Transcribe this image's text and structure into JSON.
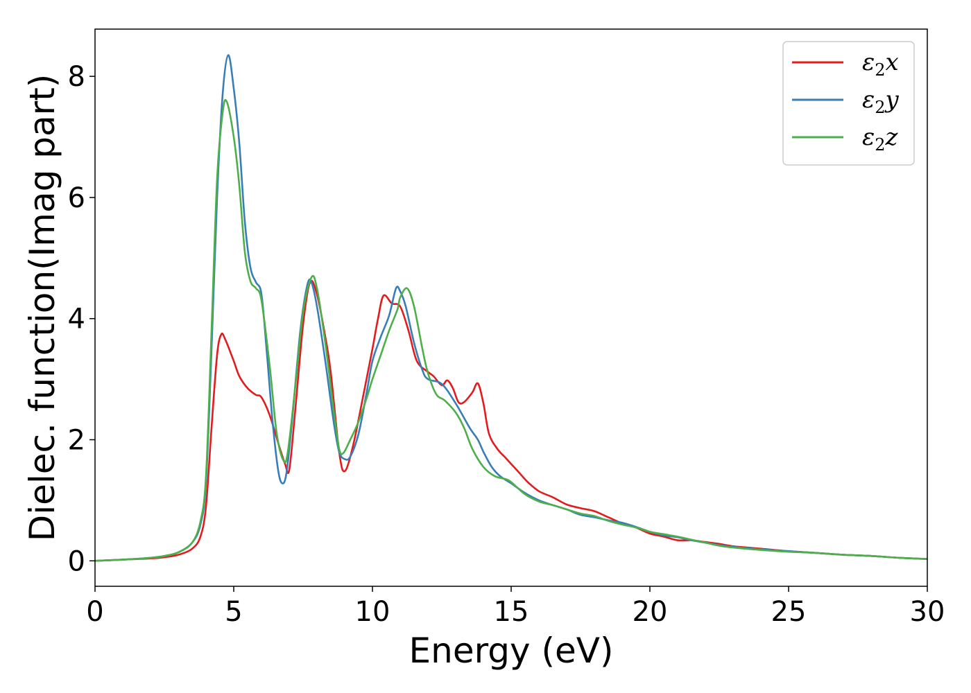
{
  "chart_data": {
    "type": "line",
    "xlabel": "Energy (eV)",
    "ylabel": "Dielec. function(Imag part)",
    "xlim": [
      0,
      30
    ],
    "ylim": [
      -0.42,
      8.78
    ],
    "x_ticks": [
      0,
      5,
      10,
      15,
      20,
      25,
      30
    ],
    "y_ticks": [
      0,
      2,
      4,
      6,
      8
    ],
    "grid": false,
    "legend_position": "top-right",
    "series": [
      {
        "name": "ε2x",
        "legend": {
          "base": "ε",
          "sub": "2",
          "suffix": "x"
        },
        "color": "#e41a1c",
        "points": [
          [
            0,
            0
          ],
          [
            1,
            0.02
          ],
          [
            2,
            0.04
          ],
          [
            2.5,
            0.06
          ],
          [
            3,
            0.1
          ],
          [
            3.5,
            0.2
          ],
          [
            3.8,
            0.4
          ],
          [
            4,
            0.9
          ],
          [
            4.2,
            2.2
          ],
          [
            4.4,
            3.4
          ],
          [
            4.55,
            3.74
          ],
          [
            4.7,
            3.65
          ],
          [
            5,
            3.3
          ],
          [
            5.2,
            3.05
          ],
          [
            5.5,
            2.85
          ],
          [
            5.8,
            2.74
          ],
          [
            6,
            2.7
          ],
          [
            6.3,
            2.4
          ],
          [
            6.6,
            1.95
          ],
          [
            6.85,
            1.6
          ],
          [
            7,
            1.5
          ],
          [
            7.2,
            2.4
          ],
          [
            7.5,
            3.9
          ],
          [
            7.75,
            4.6
          ],
          [
            8,
            4.4
          ],
          [
            8.3,
            3.7
          ],
          [
            8.5,
            3.1
          ],
          [
            8.8,
            1.8
          ],
          [
            9,
            1.48
          ],
          [
            9.3,
            1.9
          ],
          [
            9.7,
            2.8
          ],
          [
            10,
            3.5
          ],
          [
            10.2,
            4.0
          ],
          [
            10.4,
            4.38
          ],
          [
            10.7,
            4.25
          ],
          [
            11,
            4.2
          ],
          [
            11.3,
            3.8
          ],
          [
            11.6,
            3.3
          ],
          [
            12,
            3.12
          ],
          [
            12.2,
            3.05
          ],
          [
            12.5,
            2.9
          ],
          [
            12.7,
            2.98
          ],
          [
            12.9,
            2.85
          ],
          [
            13.1,
            2.62
          ],
          [
            13.3,
            2.62
          ],
          [
            13.6,
            2.78
          ],
          [
            13.8,
            2.93
          ],
          [
            14,
            2.6
          ],
          [
            14.2,
            2.1
          ],
          [
            14.5,
            1.85
          ],
          [
            14.8,
            1.7
          ],
          [
            15,
            1.6
          ],
          [
            15.3,
            1.45
          ],
          [
            15.6,
            1.3
          ],
          [
            16,
            1.15
          ],
          [
            16.5,
            1.05
          ],
          [
            17,
            0.93
          ],
          [
            17.5,
            0.87
          ],
          [
            18,
            0.82
          ],
          [
            18.5,
            0.72
          ],
          [
            19,
            0.62
          ],
          [
            19.5,
            0.55
          ],
          [
            20,
            0.45
          ],
          [
            20.5,
            0.4
          ],
          [
            21,
            0.34
          ],
          [
            21.5,
            0.34
          ],
          [
            22,
            0.31
          ],
          [
            22.5,
            0.28
          ],
          [
            23,
            0.24
          ],
          [
            23.5,
            0.22
          ],
          [
            24,
            0.2
          ],
          [
            25,
            0.16
          ],
          [
            26,
            0.13
          ],
          [
            27,
            0.1
          ],
          [
            28,
            0.08
          ],
          [
            29,
            0.05
          ],
          [
            30,
            0.03
          ]
        ]
      },
      {
        "name": "ε2y",
        "legend": {
          "base": "ε",
          "sub": "2",
          "suffix": "y"
        },
        "color": "#377eb8",
        "points": [
          [
            0,
            0
          ],
          [
            1,
            0.02
          ],
          [
            2,
            0.05
          ],
          [
            2.5,
            0.08
          ],
          [
            3,
            0.14
          ],
          [
            3.5,
            0.3
          ],
          [
            3.8,
            0.6
          ],
          [
            4,
            1.3
          ],
          [
            4.2,
            3.5
          ],
          [
            4.4,
            6.0
          ],
          [
            4.6,
            7.7
          ],
          [
            4.8,
            8.35
          ],
          [
            5,
            7.8
          ],
          [
            5.2,
            6.9
          ],
          [
            5.4,
            5.6
          ],
          [
            5.6,
            4.85
          ],
          [
            5.8,
            4.6
          ],
          [
            6,
            4.4
          ],
          [
            6.2,
            3.4
          ],
          [
            6.4,
            2.3
          ],
          [
            6.6,
            1.5
          ],
          [
            6.75,
            1.28
          ],
          [
            6.9,
            1.45
          ],
          [
            7.1,
            2.3
          ],
          [
            7.4,
            3.8
          ],
          [
            7.65,
            4.55
          ],
          [
            7.8,
            4.6
          ],
          [
            8,
            4.2
          ],
          [
            8.3,
            3.3
          ],
          [
            8.6,
            2.3
          ],
          [
            8.8,
            1.8
          ],
          [
            9,
            1.68
          ],
          [
            9.2,
            1.72
          ],
          [
            9.5,
            2.1
          ],
          [
            9.8,
            2.8
          ],
          [
            10,
            3.3
          ],
          [
            10.3,
            3.7
          ],
          [
            10.6,
            4.05
          ],
          [
            10.85,
            4.5
          ],
          [
            11,
            4.45
          ],
          [
            11.2,
            4.2
          ],
          [
            11.5,
            3.6
          ],
          [
            11.8,
            3.15
          ],
          [
            12,
            3.0
          ],
          [
            12.5,
            2.92
          ],
          [
            13,
            2.6
          ],
          [
            13.5,
            2.2
          ],
          [
            13.8,
            2.0
          ],
          [
            14,
            1.8
          ],
          [
            14.3,
            1.55
          ],
          [
            14.6,
            1.4
          ],
          [
            15,
            1.28
          ],
          [
            15.5,
            1.12
          ],
          [
            16,
            1.0
          ],
          [
            16.5,
            0.92
          ],
          [
            17,
            0.85
          ],
          [
            17.5,
            0.76
          ],
          [
            18,
            0.72
          ],
          [
            18.5,
            0.67
          ],
          [
            19,
            0.63
          ],
          [
            19.5,
            0.56
          ],
          [
            20,
            0.48
          ],
          [
            20.5,
            0.42
          ],
          [
            21,
            0.39
          ],
          [
            21.5,
            0.34
          ],
          [
            22,
            0.3
          ],
          [
            22.5,
            0.26
          ],
          [
            23,
            0.23
          ],
          [
            24,
            0.19
          ],
          [
            25,
            0.16
          ],
          [
            26,
            0.13
          ],
          [
            27,
            0.1
          ],
          [
            28,
            0.08
          ],
          [
            29,
            0.05
          ],
          [
            30,
            0.03
          ]
        ]
      },
      {
        "name": "ε2z",
        "legend": {
          "base": "ε",
          "sub": "2",
          "suffix": "z"
        },
        "color": "#4daf4a",
        "points": [
          [
            0,
            0
          ],
          [
            1,
            0.02
          ],
          [
            2,
            0.05
          ],
          [
            2.5,
            0.08
          ],
          [
            3,
            0.14
          ],
          [
            3.5,
            0.3
          ],
          [
            3.8,
            0.65
          ],
          [
            4,
            1.4
          ],
          [
            4.2,
            3.8
          ],
          [
            4.4,
            6.3
          ],
          [
            4.6,
            7.4
          ],
          [
            4.75,
            7.58
          ],
          [
            5,
            7.0
          ],
          [
            5.2,
            6.2
          ],
          [
            5.4,
            5.1
          ],
          [
            5.6,
            4.62
          ],
          [
            5.8,
            4.5
          ],
          [
            6,
            4.3
          ],
          [
            6.3,
            3.2
          ],
          [
            6.55,
            2.1
          ],
          [
            6.8,
            1.65
          ],
          [
            6.95,
            1.8
          ],
          [
            7.2,
            2.8
          ],
          [
            7.5,
            4.1
          ],
          [
            7.8,
            4.68
          ],
          [
            8,
            4.5
          ],
          [
            8.3,
            3.6
          ],
          [
            8.6,
            2.5
          ],
          [
            8.8,
            1.85
          ],
          [
            8.95,
            1.78
          ],
          [
            9.2,
            2.0
          ],
          [
            9.5,
            2.3
          ],
          [
            9.8,
            2.7
          ],
          [
            10,
            3.0
          ],
          [
            10.3,
            3.4
          ],
          [
            10.6,
            3.8
          ],
          [
            10.9,
            4.15
          ],
          [
            11,
            4.35
          ],
          [
            11.25,
            4.5
          ],
          [
            11.5,
            4.2
          ],
          [
            11.8,
            3.5
          ],
          [
            12,
            3.1
          ],
          [
            12.3,
            2.75
          ],
          [
            12.6,
            2.65
          ],
          [
            13,
            2.45
          ],
          [
            13.3,
            2.2
          ],
          [
            13.6,
            1.85
          ],
          [
            14,
            1.55
          ],
          [
            14.4,
            1.4
          ],
          [
            14.8,
            1.35
          ],
          [
            15,
            1.3
          ],
          [
            15.5,
            1.1
          ],
          [
            16,
            0.98
          ],
          [
            16.5,
            0.92
          ],
          [
            17,
            0.85
          ],
          [
            17.5,
            0.78
          ],
          [
            18,
            0.74
          ],
          [
            18.5,
            0.66
          ],
          [
            19,
            0.6
          ],
          [
            19.5,
            0.55
          ],
          [
            20,
            0.48
          ],
          [
            20.5,
            0.44
          ],
          [
            21,
            0.4
          ],
          [
            21.5,
            0.35
          ],
          [
            22,
            0.3
          ],
          [
            22.5,
            0.25
          ],
          [
            23,
            0.22
          ],
          [
            24,
            0.18
          ],
          [
            25,
            0.15
          ],
          [
            26,
            0.13
          ],
          [
            27,
            0.1
          ],
          [
            28,
            0.08
          ],
          [
            29,
            0.05
          ],
          [
            30,
            0.03
          ]
        ]
      }
    ]
  }
}
